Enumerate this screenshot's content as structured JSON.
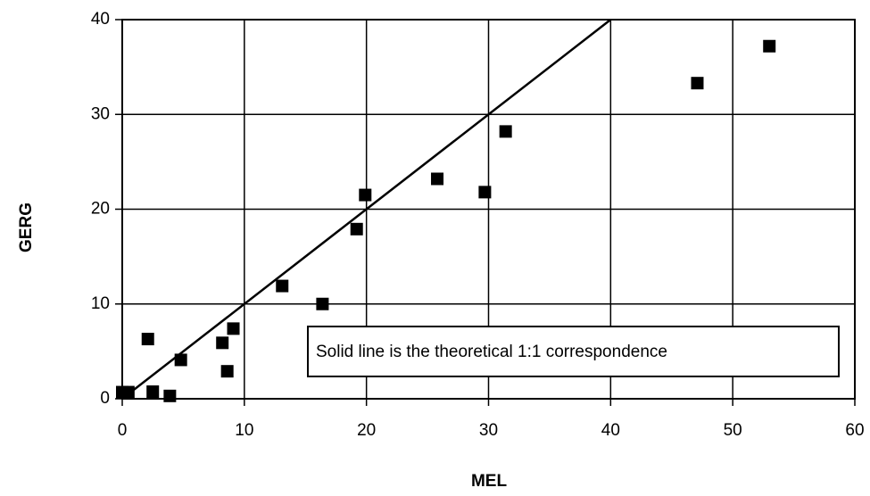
{
  "chart_data": {
    "type": "scatter",
    "x_label": "MEL",
    "y_label": "GERG",
    "xlim": [
      0,
      60
    ],
    "ylim": [
      0,
      40
    ],
    "xticks": [
      0,
      10,
      20,
      30,
      40,
      50,
      60
    ],
    "yticks": [
      0,
      10,
      20,
      30,
      40
    ],
    "grid": true,
    "series": [
      {
        "color": "#000000",
        "x": [
          0,
          0.5,
          2.1,
          2.5,
          3.9,
          4.8,
          8.2,
          8.6,
          9.1,
          13.1,
          16.4,
          19.2,
          19.9,
          25.8,
          29.7,
          31.4,
          47.1,
          53.0
        ],
        "values": [
          0.7,
          0.7,
          6.3,
          0.75,
          0.3,
          4.1,
          5.9,
          2.9,
          7.4,
          11.9,
          10.0,
          17.9,
          21.5,
          23.2,
          21.8,
          28.2,
          33.3,
          37.2
        ]
      }
    ],
    "reference_line": {
      "x": [
        0,
        40
      ],
      "y": [
        0,
        40
      ]
    },
    "annotation": "Solid line is the theoretical 1:1 correspondence"
  }
}
